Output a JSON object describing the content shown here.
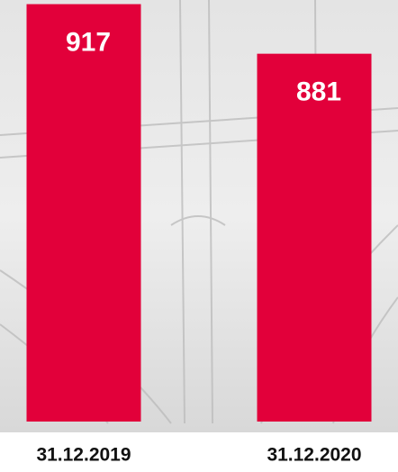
{
  "chart_data": {
    "type": "bar",
    "categories": [
      "31.12.2019",
      "31.12.2020"
    ],
    "values": [
      917,
      881
    ],
    "color": "#e2003a",
    "ylim": [
      614,
      920
    ]
  }
}
